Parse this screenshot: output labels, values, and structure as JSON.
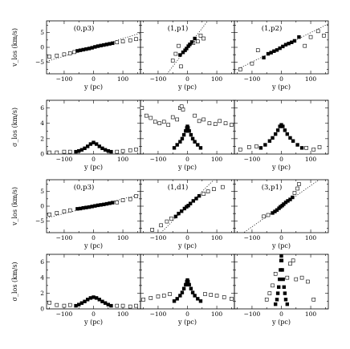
{
  "chart_data": {
    "type": "scatter",
    "layout": {
      "rows": 4,
      "cols": 3
    },
    "x_label": "y (pc)",
    "x_ticks": [
      -100,
      0,
      100
    ],
    "x_range": [
      -160,
      160
    ],
    "row_y_labels": [
      "v_los (km/s)",
      "σ_los (km/s)",
      "v_los (km/s)",
      "σ_los (km/s)"
    ],
    "row_y_ranges": [
      [
        -9,
        9
      ],
      [
        0,
        7
      ],
      [
        -9,
        9
      ],
      [
        0,
        7
      ]
    ],
    "row_y_ticks": [
      [
        -5,
        0,
        5
      ],
      [
        0,
        2,
        4,
        6
      ],
      [
        -5,
        0,
        5
      ],
      [
        0,
        2,
        4,
        6
      ]
    ],
    "panels": [
      {
        "row": 0,
        "col": 0,
        "label": "(0,p3)",
        "line_slope": 0.03,
        "filled": [
          [
            -55,
            -1.2
          ],
          [
            -45,
            -1.0
          ],
          [
            -35,
            -0.8
          ],
          [
            -25,
            -0.6
          ],
          [
            -15,
            -0.4
          ],
          [
            -5,
            -0.15
          ],
          [
            5,
            0.15
          ],
          [
            15,
            0.4
          ],
          [
            25,
            0.6
          ],
          [
            35,
            0.8
          ],
          [
            45,
            1.0
          ],
          [
            55,
            1.2
          ],
          [
            65,
            1.4
          ]
        ],
        "open": [
          [
            -150,
            -3.2
          ],
          [
            -125,
            -2.8
          ],
          [
            -100,
            -2.4
          ],
          [
            -80,
            -2.0
          ],
          [
            -65,
            -1.6
          ],
          [
            80,
            1.7
          ],
          [
            100,
            2.0
          ],
          [
            125,
            2.4
          ],
          [
            145,
            2.8
          ]
        ]
      },
      {
        "row": 0,
        "col": 1,
        "label": "(1,p1)",
        "line_slope": 0.13,
        "filled": [
          [
            -25,
            -2.6
          ],
          [
            -15,
            -1.7
          ],
          [
            -8,
            -1.0
          ],
          [
            -3,
            -0.4
          ],
          [
            3,
            0.4
          ],
          [
            8,
            1.0
          ],
          [
            15,
            1.8
          ],
          [
            25,
            3.0
          ]
        ],
        "open": [
          [
            -50,
            -4.5
          ],
          [
            -40,
            -2.2
          ],
          [
            -30,
            0.5
          ],
          [
            -22,
            -6.5
          ],
          [
            20,
            1.5
          ],
          [
            35,
            2.0
          ],
          [
            45,
            4.0
          ],
          [
            55,
            3.0
          ]
        ]
      },
      {
        "row": 0,
        "col": 2,
        "label": "(1,p2)",
        "line_slope": 0.05,
        "filled": [
          [
            -60,
            -3.5
          ],
          [
            -45,
            -2.2
          ],
          [
            -35,
            -1.8
          ],
          [
            -25,
            -1.3
          ],
          [
            -15,
            -0.9
          ],
          [
            -5,
            -0.3
          ],
          [
            5,
            0.3
          ],
          [
            15,
            0.9
          ],
          [
            25,
            1.3
          ],
          [
            35,
            1.7
          ],
          [
            45,
            2.2
          ],
          [
            60,
            3.5
          ]
        ],
        "open": [
          [
            -140,
            -7.5
          ],
          [
            -100,
            -5.5
          ],
          [
            -80,
            -1.0
          ],
          [
            80,
            0.5
          ],
          [
            100,
            3.5
          ],
          [
            125,
            5.5
          ],
          [
            145,
            4.0
          ]
        ]
      },
      {
        "row": 1,
        "col": 0,
        "label": "",
        "filled": [
          [
            -60,
            0.3
          ],
          [
            -50,
            0.4
          ],
          [
            -40,
            0.55
          ],
          [
            -30,
            0.75
          ],
          [
            -20,
            1.0
          ],
          [
            -10,
            1.3
          ],
          [
            0,
            1.5
          ],
          [
            10,
            1.3
          ],
          [
            20,
            1.0
          ],
          [
            30,
            0.75
          ],
          [
            40,
            0.55
          ],
          [
            50,
            0.4
          ],
          [
            60,
            0.3
          ]
        ],
        "open": [
          [
            -150,
            0.2
          ],
          [
            -125,
            0.2
          ],
          [
            -100,
            0.3
          ],
          [
            -80,
            0.3
          ],
          [
            80,
            0.3
          ],
          [
            100,
            0.4
          ],
          [
            125,
            0.5
          ],
          [
            145,
            0.6
          ]
        ]
      },
      {
        "row": 1,
        "col": 1,
        "label": "",
        "filled": [
          [
            -45,
            0.8
          ],
          [
            -35,
            1.2
          ],
          [
            -25,
            1.6
          ],
          [
            -18,
            2.0
          ],
          [
            -12,
            2.5
          ],
          [
            -6,
            3.0
          ],
          [
            -2,
            3.4
          ],
          [
            0,
            3.6
          ],
          [
            2,
            3.4
          ],
          [
            6,
            3.0
          ],
          [
            12,
            2.5
          ],
          [
            18,
            2.0
          ],
          [
            25,
            1.6
          ],
          [
            35,
            1.2
          ],
          [
            45,
            0.8
          ]
        ],
        "open": [
          [
            -155,
            6.0
          ],
          [
            -140,
            5.0
          ],
          [
            -125,
            4.7
          ],
          [
            -110,
            4.2
          ],
          [
            -95,
            4.0
          ],
          [
            -80,
            4.2
          ],
          [
            -65,
            3.8
          ],
          [
            -50,
            4.8
          ],
          [
            -35,
            4.5
          ],
          [
            -25,
            6.0
          ],
          [
            -20,
            6.2
          ],
          [
            -15,
            5.8
          ],
          [
            25,
            5.0
          ],
          [
            40,
            4.3
          ],
          [
            55,
            4.5
          ],
          [
            75,
            4.0
          ],
          [
            95,
            3.9
          ],
          [
            110,
            4.3
          ],
          [
            130,
            4.0
          ],
          [
            150,
            3.8
          ]
        ]
      },
      {
        "row": 1,
        "col": 2,
        "label": "",
        "filled": [
          [
            -70,
            0.8
          ],
          [
            -55,
            1.2
          ],
          [
            -40,
            1.7
          ],
          [
            -30,
            2.1
          ],
          [
            -20,
            2.6
          ],
          [
            -12,
            3.1
          ],
          [
            -5,
            3.6
          ],
          [
            0,
            3.8
          ],
          [
            5,
            3.6
          ],
          [
            12,
            3.1
          ],
          [
            20,
            2.6
          ],
          [
            30,
            2.1
          ],
          [
            40,
            1.7
          ],
          [
            55,
            1.2
          ],
          [
            70,
            0.8
          ]
        ],
        "open": [
          [
            -140,
            0.6
          ],
          [
            -110,
            0.9
          ],
          [
            -85,
            1.0
          ],
          [
            85,
            0.8
          ],
          [
            110,
            0.6
          ],
          [
            130,
            0.9
          ]
        ]
      },
      {
        "row": 2,
        "col": 0,
        "label": "(0,p3)",
        "line_slope": 0.025,
        "filled": [
          [
            -55,
            -0.9
          ],
          [
            -45,
            -0.8
          ],
          [
            -35,
            -0.6
          ],
          [
            -25,
            -0.45
          ],
          [
            -15,
            -0.3
          ],
          [
            -5,
            -0.1
          ],
          [
            5,
            0.1
          ],
          [
            15,
            0.3
          ],
          [
            25,
            0.45
          ],
          [
            35,
            0.6
          ],
          [
            45,
            0.8
          ],
          [
            55,
            1.0
          ],
          [
            65,
            1.2
          ]
        ],
        "open": [
          [
            -150,
            -2.8
          ],
          [
            -125,
            -2.3
          ],
          [
            -100,
            -1.8
          ],
          [
            -80,
            -1.4
          ],
          [
            80,
            1.3
          ],
          [
            100,
            2.0
          ],
          [
            125,
            2.4
          ],
          [
            145,
            3.4
          ]
        ]
      },
      {
        "row": 2,
        "col": 1,
        "label": "(1,d1)",
        "line_slope": 0.1,
        "filled": [
          [
            -40,
            -3.5
          ],
          [
            -30,
            -2.5
          ],
          [
            -20,
            -1.7
          ],
          [
            -10,
            -0.8
          ],
          [
            -3,
            -0.2
          ],
          [
            3,
            0.2
          ],
          [
            10,
            0.9
          ],
          [
            20,
            1.8
          ],
          [
            30,
            2.6
          ],
          [
            40,
            3.5
          ]
        ],
        "open": [
          [
            -120,
            -8.0
          ],
          [
            -90,
            -6.5
          ],
          [
            -70,
            -5.2
          ],
          [
            -55,
            -4.2
          ],
          [
            55,
            4.2
          ],
          [
            70,
            5.0
          ],
          [
            90,
            5.8
          ],
          [
            120,
            6.5
          ]
        ]
      },
      {
        "row": 2,
        "col": 2,
        "label": "(3,p1)",
        "line_slope": 0.07,
        "filled": [
          [
            -30,
            -2.3
          ],
          [
            -22,
            -1.8
          ],
          [
            -15,
            -1.3
          ],
          [
            -8,
            -0.7
          ],
          [
            -3,
            -0.2
          ],
          [
            3,
            0.2
          ],
          [
            8,
            0.7
          ],
          [
            15,
            1.3
          ],
          [
            22,
            1.8
          ],
          [
            30,
            2.3
          ],
          [
            38,
            3.0
          ]
        ],
        "open": [
          [
            -60,
            -3.5
          ],
          [
            -45,
            -3.0
          ],
          [
            45,
            4.5
          ],
          [
            55,
            6.0
          ],
          [
            60,
            7.5
          ]
        ]
      },
      {
        "row": 3,
        "col": 0,
        "label": "",
        "filled": [
          [
            -60,
            0.4
          ],
          [
            -50,
            0.55
          ],
          [
            -40,
            0.75
          ],
          [
            -30,
            0.95
          ],
          [
            -20,
            1.2
          ],
          [
            -10,
            1.4
          ],
          [
            0,
            1.5
          ],
          [
            10,
            1.4
          ],
          [
            20,
            1.2
          ],
          [
            30,
            0.95
          ],
          [
            40,
            0.75
          ],
          [
            50,
            0.55
          ],
          [
            60,
            0.4
          ]
        ],
        "open": [
          [
            -150,
            0.8
          ],
          [
            -125,
            0.5
          ],
          [
            -100,
            0.4
          ],
          [
            -80,
            0.5
          ],
          [
            80,
            0.4
          ],
          [
            100,
            0.4
          ],
          [
            125,
            0.3
          ],
          [
            145,
            0.4
          ]
        ]
      },
      {
        "row": 3,
        "col": 1,
        "label": "",
        "filled": [
          [
            -45,
            1.0
          ],
          [
            -35,
            1.3
          ],
          [
            -25,
            1.7
          ],
          [
            -18,
            2.1
          ],
          [
            -12,
            2.6
          ],
          [
            -6,
            3.1
          ],
          [
            -2,
            3.5
          ],
          [
            0,
            3.7
          ],
          [
            2,
            3.5
          ],
          [
            6,
            3.1
          ],
          [
            12,
            2.6
          ],
          [
            18,
            2.1
          ],
          [
            25,
            1.7
          ],
          [
            35,
            1.3
          ],
          [
            45,
            1.0
          ]
        ],
        "open": [
          [
            -150,
            1.2
          ],
          [
            -125,
            1.4
          ],
          [
            -100,
            1.6
          ],
          [
            -80,
            1.7
          ],
          [
            -60,
            1.9
          ],
          [
            60,
            1.9
          ],
          [
            80,
            1.8
          ],
          [
            100,
            1.7
          ],
          [
            125,
            1.5
          ],
          [
            150,
            1.3
          ]
        ]
      },
      {
        "row": 3,
        "col": 2,
        "label": "",
        "filled": [
          [
            -20,
            0.6
          ],
          [
            -15,
            1.2
          ],
          [
            -12,
            2.0
          ],
          [
            -9,
            2.8
          ],
          [
            -6,
            3.8
          ],
          [
            -3,
            5.0
          ],
          [
            -1,
            6.2
          ],
          [
            0,
            6.8
          ],
          [
            1,
            6.2
          ],
          [
            3,
            5.0
          ],
          [
            6,
            3.8
          ],
          [
            9,
            2.8
          ],
          [
            12,
            2.0
          ],
          [
            15,
            1.2
          ],
          [
            20,
            0.6
          ]
        ],
        "open": [
          [
            -50,
            1.2
          ],
          [
            -40,
            2.0
          ],
          [
            -30,
            3.0
          ],
          [
            -20,
            4.5
          ],
          [
            20,
            4.0
          ],
          [
            30,
            5.8
          ],
          [
            40,
            6.2
          ],
          [
            50,
            3.8
          ],
          [
            70,
            4.0
          ],
          [
            90,
            3.5
          ],
          [
            110,
            1.2
          ]
        ]
      }
    ]
  }
}
